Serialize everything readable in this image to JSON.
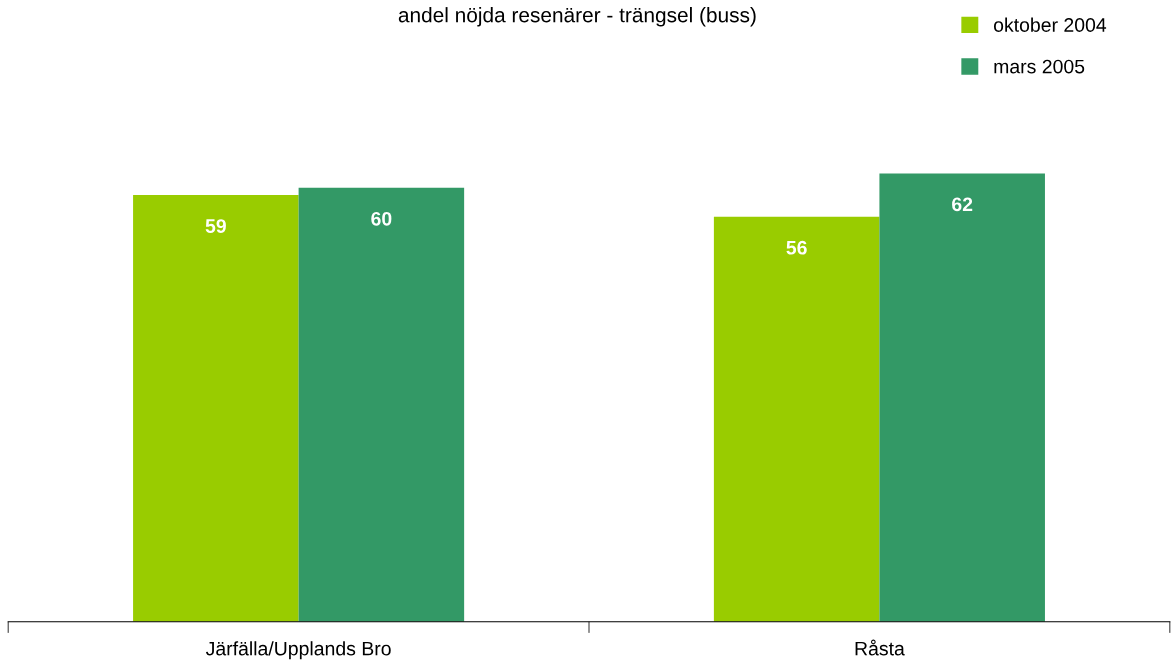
{
  "chart_data": {
    "type": "bar",
    "title": "andel nöjda resenärer - trängsel (buss)",
    "categories": [
      "Järfälla/Upplands Bro",
      "Råsta"
    ],
    "series": [
      {
        "name": "oktober 2004",
        "color": "#99cc00",
        "values": [
          59,
          56
        ]
      },
      {
        "name": "mars 2005",
        "color": "#339966",
        "values": [
          60,
          62
        ]
      }
    ],
    "data_labels": true,
    "legend": "top right",
    "grid": false
  }
}
